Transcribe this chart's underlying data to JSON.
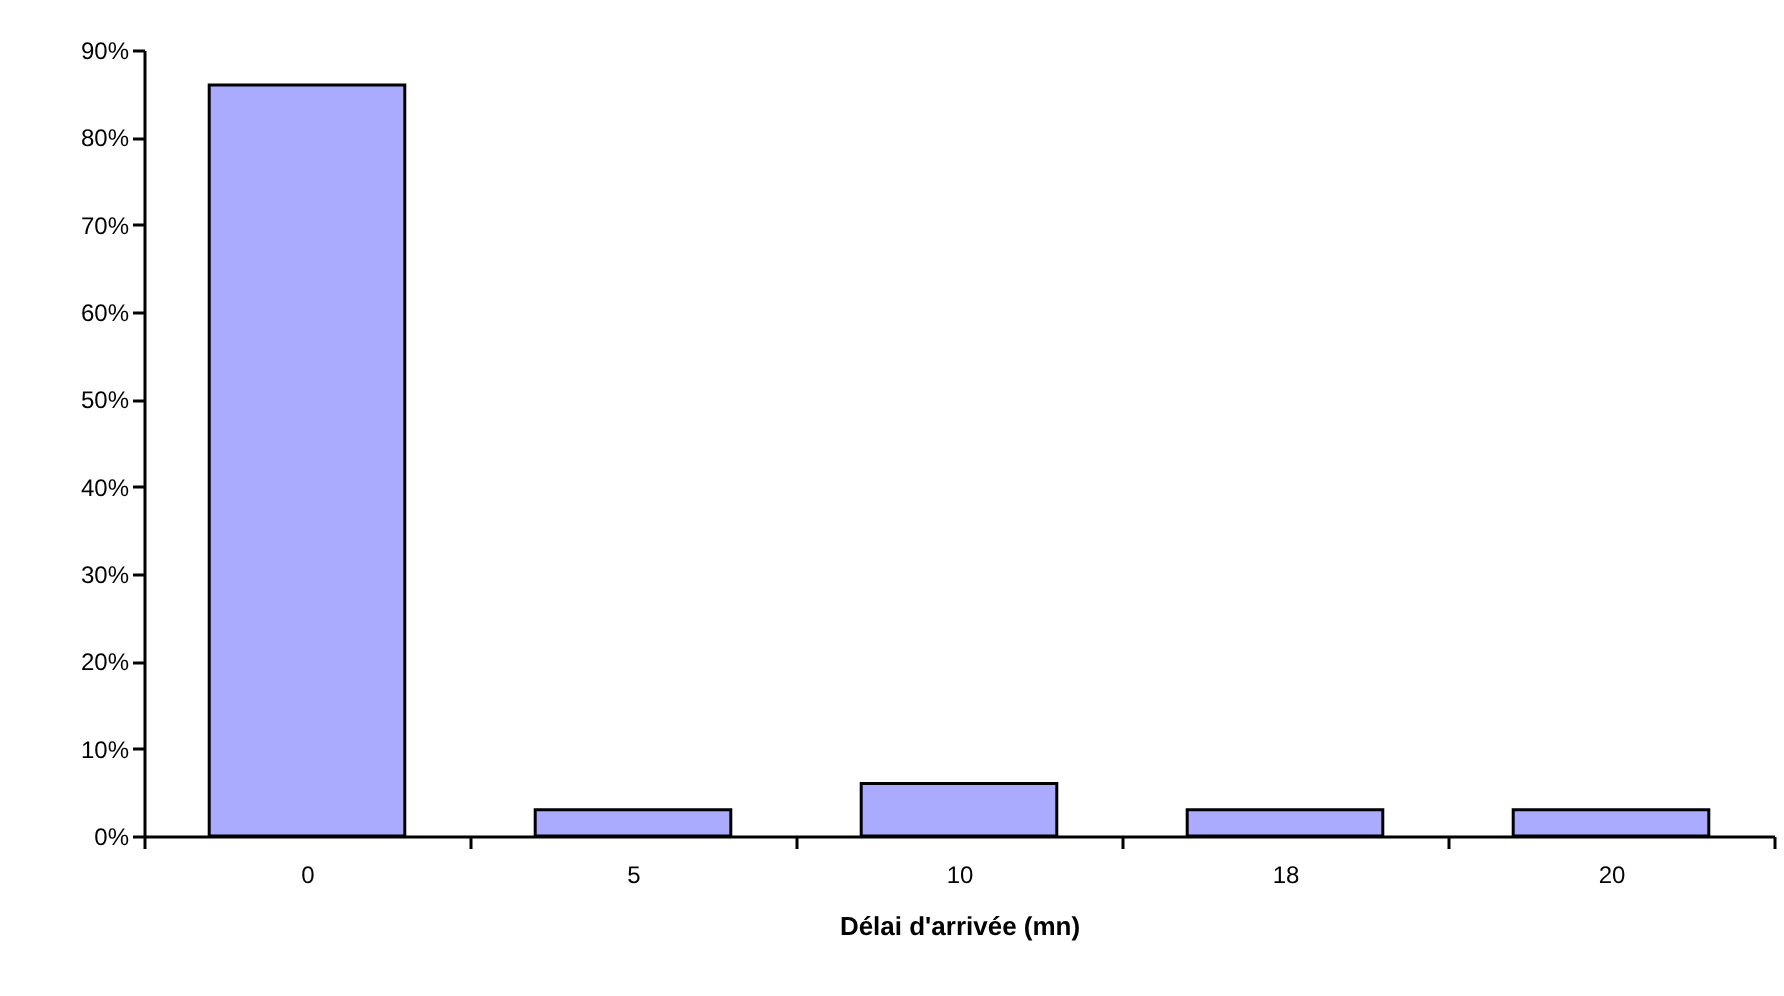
{
  "chart_data": {
    "type": "bar",
    "xlabel": "Délai d'arrivée (mn)",
    "categories": [
      "0",
      "5",
      "10",
      "18",
      "20"
    ],
    "values": [
      86,
      3,
      6,
      3,
      3
    ],
    "color": "#aaaaff",
    "ylim": [
      0,
      90
    ],
    "yticks": [
      {
        "value": 0,
        "label": "0%"
      },
      {
        "value": 10,
        "label": "10%"
      },
      {
        "value": 20,
        "label": "20%"
      },
      {
        "value": 30,
        "label": "30%"
      },
      {
        "value": 40,
        "label": "40%"
      },
      {
        "value": 50,
        "label": "50%"
      },
      {
        "value": 60,
        "label": "60%"
      },
      {
        "value": 70,
        "label": "70%"
      },
      {
        "value": 80,
        "label": "80%"
      },
      {
        "value": 90,
        "label": "90%"
      }
    ],
    "grid": false,
    "legend": false
  }
}
